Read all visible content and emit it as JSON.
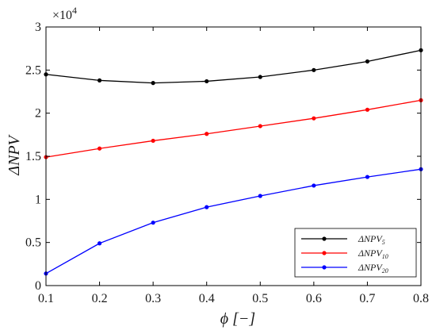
{
  "chart_data": {
    "type": "line",
    "title": "",
    "xlabel": "ϕ  [−]",
    "ylabel": "ΔNPV",
    "multiplier": "×10",
    "multiplier_exp": "4",
    "xlim": [
      0.1,
      0.8
    ],
    "ylim": [
      0,
      3
    ],
    "x": [
      0.1,
      0.2,
      0.3,
      0.4,
      0.5,
      0.6,
      0.7,
      0.8
    ],
    "xticks": [
      "0.1",
      "0.2",
      "0.3",
      "0.4",
      "0.5",
      "0.6",
      "0.7",
      "0.8"
    ],
    "yticks": [
      "0",
      "0.5",
      "1",
      "1.5",
      "2",
      "2.5",
      "3"
    ],
    "ytick_values": [
      0,
      0.5,
      1,
      1.5,
      2,
      2.5,
      3
    ],
    "grid": false,
    "legend_position": "bottom-right",
    "series": [
      {
        "name": "ΔNPV",
        "subscript": "5",
        "color": "#000000",
        "values": [
          2.45,
          2.38,
          2.35,
          2.37,
          2.42,
          2.5,
          2.6,
          2.73
        ]
      },
      {
        "name": "ΔNPV",
        "subscript": "10",
        "color": "#ff0000",
        "values": [
          1.49,
          1.59,
          1.68,
          1.76,
          1.85,
          1.94,
          2.04,
          2.15
        ]
      },
      {
        "name": "ΔNPV",
        "subscript": "20",
        "color": "#0000ff",
        "values": [
          0.14,
          0.49,
          0.73,
          0.91,
          1.04,
          1.16,
          1.26,
          1.35
        ]
      }
    ]
  }
}
